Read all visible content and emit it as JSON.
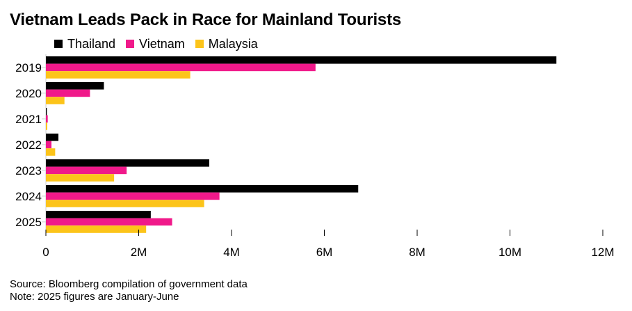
{
  "chart_data": {
    "type": "bar",
    "orientation": "horizontal",
    "title": "Vietnam Leads Pack in Race for Mainland Tourists",
    "categories": [
      "2019",
      "2020",
      "2021",
      "2022",
      "2023",
      "2024",
      "2025"
    ],
    "series": [
      {
        "name": "Thailand",
        "color": "#000000",
        "values": [
          11.0,
          1.25,
          0.02,
          0.27,
          3.52,
          6.73,
          2.26
        ]
      },
      {
        "name": "Vietnam",
        "color": "#f0198a",
        "values": [
          5.81,
          0.95,
          0.04,
          0.12,
          1.74,
          3.74,
          2.72
        ]
      },
      {
        "name": "Malaysia",
        "color": "#fcc41a",
        "values": [
          3.11,
          0.4,
          0.03,
          0.2,
          1.47,
          3.41,
          2.16
        ]
      }
    ],
    "xlim": [
      0,
      12
    ],
    "xticks": [
      0,
      2,
      4,
      6,
      8,
      10,
      12
    ],
    "xtick_labels": [
      "0",
      "2M",
      "4M",
      "6M",
      "8M",
      "10M",
      "12M"
    ],
    "xlabel": "",
    "ylabel": "",
    "legend": "top-left",
    "grid": false
  },
  "footer": {
    "source": "Source: Bloomberg compilation of government data",
    "note": "Note: 2025 figures are January-June"
  }
}
